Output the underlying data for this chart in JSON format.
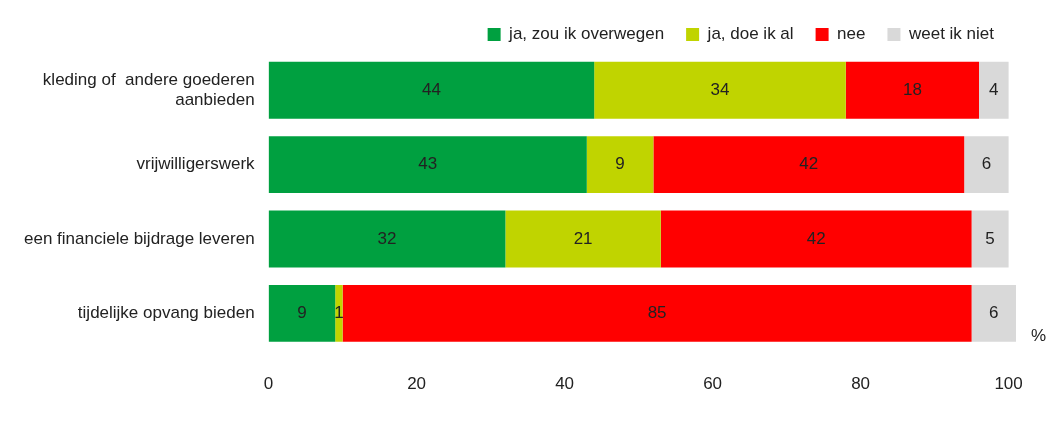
{
  "chart_data": {
    "type": "bar",
    "orientation": "horizontal",
    "stacked": true,
    "categories": [
      "kleding of  andere goederen aanbieden",
      "vrijwilligerswerk",
      "een financiele bijdrage leveren",
      "tijdelijke opvang bieden"
    ],
    "series": [
      {
        "name": "ja, zou ik overwegen",
        "color": "#00a040",
        "values": [
          44,
          43,
          32,
          9
        ]
      },
      {
        "name": "ja, doe ik al",
        "color": "#c0d400",
        "values": [
          34,
          9,
          21,
          1
        ]
      },
      {
        "name": "nee",
        "color": "#ff0000",
        "values": [
          18,
          42,
          42,
          85
        ]
      },
      {
        "name": "weet ik niet",
        "color": "#d9d9d9",
        "values": [
          4,
          6,
          5,
          6
        ]
      }
    ],
    "xlim": [
      0,
      101
    ],
    "xticks": [
      0,
      20,
      40,
      60,
      80,
      100
    ],
    "xlabel": "%",
    "data_labels": true,
    "legend": "top right",
    "grid": false
  }
}
